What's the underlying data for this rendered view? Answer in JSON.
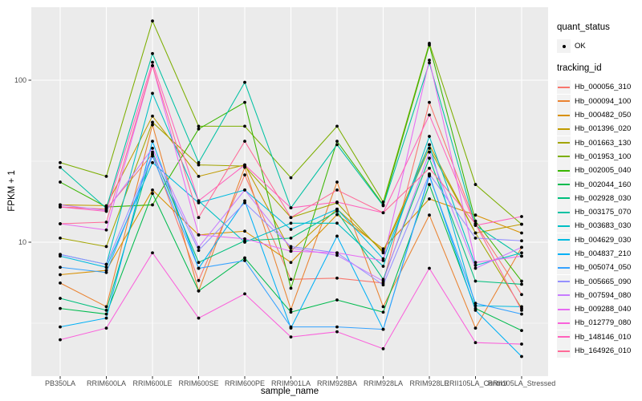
{
  "legend": {
    "quant_status_title": "quant_status",
    "ok_label": "OK",
    "tracking_title": "tracking_id"
  },
  "colors": {
    "panel_bg": "#EBEBEB",
    "grid": "#FFFFFF",
    "tick_mark": "#333333",
    "tick_text": "#4D4D4D",
    "point": "#000000",
    "legend_key_bg": "#F2F2F2"
  },
  "chart_data": {
    "type": "line",
    "title": "",
    "xlabel": "sample_name",
    "ylabel": "FPKM + 1",
    "yscale": "log10",
    "ylim": [
      1.5,
      282
    ],
    "y_ticks": [
      10,
      100
    ],
    "y_tick_labels": [
      "10",
      "100"
    ],
    "y_minor_gridlines": [
      3.1623,
      31.6228
    ],
    "grid": true,
    "legend_position": "right",
    "point_marker": {
      "label": "OK",
      "color": "#000000"
    },
    "categories": [
      "PB350LA",
      "RRIM600LA",
      "RRIM600LE",
      "RRIM600SE",
      "RRIM600PE",
      "RRIM901LA",
      "RRIM928BA",
      "RRIM928LA",
      "RRIM928LE",
      "RRII105LA_Control",
      "RRII105LA_Stressed"
    ],
    "series": [
      {
        "name": "Hb_000056_310",
        "color": "#F8766D",
        "values": [
          16.5,
          16.0,
          35,
          5.8,
          26,
          5.9,
          6.0,
          5.6,
          73,
          13.0,
          4.75
        ]
      },
      {
        "name": "Hb_000094_100",
        "color": "#EA8331",
        "values": [
          5.6,
          4.0,
          53,
          5.0,
          29,
          3.85,
          23.5,
          4.0,
          14.7,
          2.95,
          9.3
        ]
      },
      {
        "name": "Hb_000482_050",
        "color": "#D89000",
        "values": [
          6.3,
          6.7,
          21,
          11.1,
          11.7,
          7.5,
          14.8,
          9.1,
          18.5,
          14.7,
          11.4
        ]
      },
      {
        "name": "Hb_001396_020",
        "color": "#C09B00",
        "values": [
          17.0,
          16.8,
          60,
          25.5,
          30,
          8.8,
          16.0,
          8.8,
          40,
          11.4,
          12.9
        ]
      },
      {
        "name": "Hb_001663_130",
        "color": "#A3A500",
        "values": [
          10.6,
          9.4,
          55,
          30,
          29.5,
          14.2,
          17.5,
          8.6,
          38,
          11.4,
          3.9
        ]
      },
      {
        "name": "Hb_001953_100",
        "color": "#7CAE00",
        "values": [
          31,
          25.5,
          232,
          52,
          52,
          25,
          52,
          17.7,
          169,
          22.7,
          12.9
        ]
      },
      {
        "name": "Hb_002005_040",
        "color": "#39B600",
        "values": [
          23.5,
          16.5,
          17,
          50,
          73,
          5.2,
          42,
          17.0,
          165,
          13.5,
          5.75
        ]
      },
      {
        "name": "Hb_002044_160",
        "color": "#00BB4E",
        "values": [
          3.9,
          3.6,
          20,
          5.0,
          8.0,
          3.7,
          4.4,
          3.7,
          22.7,
          3.9,
          2.85
        ]
      },
      {
        "name": "Hb_002928_030",
        "color": "#00BF7D",
        "values": [
          4.5,
          3.8,
          36,
          7.5,
          10.2,
          10.6,
          15.5,
          5.9,
          33,
          5.75,
          5.5
        ]
      },
      {
        "name": "Hb_003175_070",
        "color": "#00C1A3",
        "values": [
          29,
          16.2,
          146,
          31,
          97,
          16.3,
          40,
          16.8,
          128,
          12.7,
          8.2
        ]
      },
      {
        "name": "Hb_003683_030",
        "color": "#00BFC4",
        "values": [
          8.4,
          7.3,
          83,
          18,
          10.0,
          13.1,
          13.1,
          7.1,
          45,
          7.2,
          8.6
        ]
      },
      {
        "name": "Hb_004629_030",
        "color": "#00BAE0",
        "values": [
          8.2,
          7.0,
          31,
          17.5,
          21,
          12.0,
          16.0,
          7.9,
          40,
          4.05,
          4.0
        ]
      },
      {
        "name": "Hb_004837_210",
        "color": "#00B0F6",
        "values": [
          3.0,
          3.4,
          42,
          6.9,
          18,
          2.95,
          10.9,
          2.9,
          26,
          3.8,
          1.97
        ]
      },
      {
        "name": "Hb_005074_050",
        "color": "#35A2FF",
        "values": [
          7.0,
          6.5,
          34,
          6.9,
          7.7,
          3.0,
          3.0,
          2.9,
          25.6,
          4.2,
          3.6
        ]
      },
      {
        "name": "Hb_005665_090",
        "color": "#9590FF",
        "values": [
          8.4,
          7.3,
          35,
          8.9,
          17.5,
          9.4,
          8.6,
          5.45,
          26.4,
          10.6,
          10.2
        ]
      },
      {
        "name": "Hb_007594_080",
        "color": "#C77CFF",
        "values": [
          17.0,
          15.7,
          38,
          9.3,
          21,
          9.2,
          8.3,
          5.75,
          36,
          6.9,
          9.3
        ]
      },
      {
        "name": "Hb_009288_040",
        "color": "#E76BF3",
        "values": [
          13.0,
          11.9,
          123,
          11.1,
          10.5,
          8.8,
          8.6,
          7.7,
          133,
          7.5,
          8.2
        ]
      },
      {
        "name": "Hb_012779_080",
        "color": "#FA62DB",
        "values": [
          2.5,
          2.95,
          8.6,
          3.4,
          4.8,
          2.6,
          2.8,
          2.2,
          6.9,
          2.4,
          2.35
        ]
      },
      {
        "name": "Hb_148146_010",
        "color": "#FF62BC",
        "values": [
          16.5,
          15.5,
          129,
          18,
          30,
          16.3,
          17.7,
          15.2,
          61,
          12.7,
          14.4
        ]
      },
      {
        "name": "Hb_164926_010",
        "color": "#FF6A98",
        "values": [
          13.0,
          13.3,
          123,
          14.2,
          42,
          14.2,
          21,
          15.2,
          28.6,
          13.0,
          3.8
        ]
      }
    ]
  }
}
